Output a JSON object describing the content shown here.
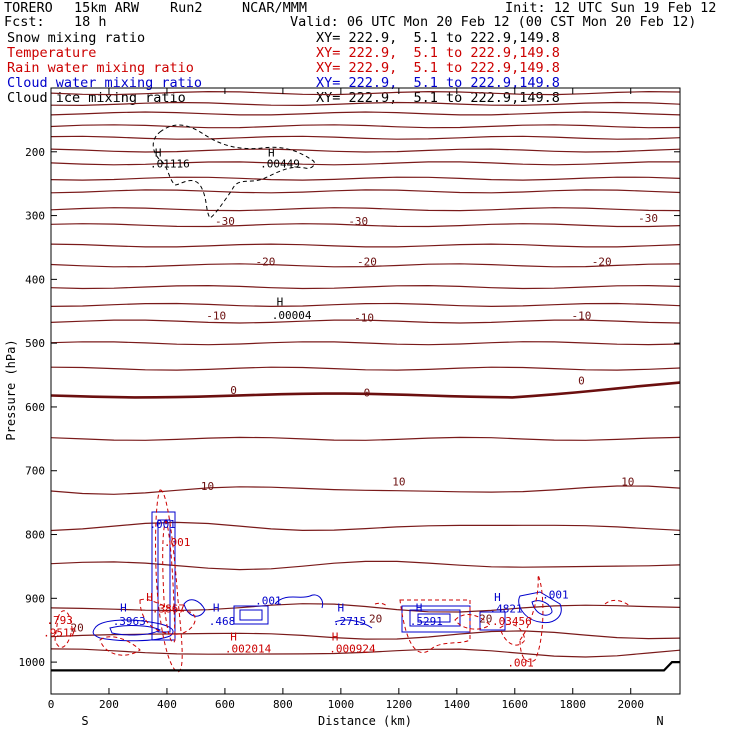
{
  "header": {
    "model": "TORERO",
    "resolution": "15km ARW",
    "run": "Run2",
    "org": "NCAR/MMM",
    "init": "Init: 12 UTC Sun 19 Feb 12",
    "fcst_label": "Fcst:",
    "fcst_value": "18 h",
    "valid": "Valid: 06 UTC Mon 20 Feb 12 (00 CST Mon 20 Feb 12)"
  },
  "legend": [
    {
      "name": "Snow mixing ratio",
      "xy": "XY= 222.9,  5.1 to 222.9,149.8",
      "color": "#000000"
    },
    {
      "name": "Temperature",
      "xy": "XY= 222.9,  5.1 to 222.9,149.8",
      "color": "#cc0000"
    },
    {
      "name": "Rain water mixing ratio",
      "xy": "XY= 222.9,  5.1 to 222.9,149.8",
      "color": "#cc0000"
    },
    {
      "name": "Cloud water mixing ratio",
      "xy": "XY= 222.9,  5.1 to 222.9,149.8",
      "color": "#0000cc"
    },
    {
      "name": "Cloud ice mixing ratio",
      "xy": "XY= 222.9,  5.1 to 222.9,149.8",
      "color": "#000000"
    }
  ],
  "chart_data": {
    "type": "cross-section contour",
    "xlabel": "Distance (km)",
    "ylabel": "Pressure (hPa)",
    "xlim": [
      0,
      2170
    ],
    "ylim": [
      1050,
      100
    ],
    "x_ticks": [
      "0",
      "200",
      "400",
      "600",
      "800",
      "1000",
      "1200",
      "1400",
      "1600",
      "1800",
      "2000"
    ],
    "y_ticks": [
      "200",
      "300",
      "400",
      "500",
      "600",
      "700",
      "800",
      "900",
      "1000"
    ],
    "end_labels": {
      "left": "S",
      "right": "N"
    },
    "temperature_labels": [
      {
        "text": "-30",
        "x": 600,
        "p": 315
      },
      {
        "text": "-30",
        "x": 1060,
        "p": 315
      },
      {
        "text": "-30",
        "x": 2060,
        "p": 310
      },
      {
        "text": "-20",
        "x": 740,
        "p": 378
      },
      {
        "text": "-20",
        "x": 1090,
        "p": 378
      },
      {
        "text": "-20",
        "x": 1900,
        "p": 378
      },
      {
        "text": "-10",
        "x": 570,
        "p": 463
      },
      {
        "text": "-10",
        "x": 1080,
        "p": 466
      },
      {
        "text": "-10",
        "x": 1830,
        "p": 463
      },
      {
        "text": "0",
        "x": 630,
        "p": 580
      },
      {
        "text": "0",
        "x": 1090,
        "p": 584
      },
      {
        "text": "0",
        "x": 1830,
        "p": 565
      },
      {
        "text": "10",
        "x": 540,
        "p": 730
      },
      {
        "text": "10",
        "x": 1200,
        "p": 723
      },
      {
        "text": "10",
        "x": 1990,
        "p": 723
      },
      {
        "text": "20",
        "x": 90,
        "p": 952
      },
      {
        "text": "20",
        "x": 1120,
        "p": 938
      },
      {
        "text": "20",
        "x": 1500,
        "p": 938
      }
    ],
    "maxima_labels": [
      {
        "text": ".01116",
        "x": 410,
        "p": 225,
        "color": "#000000"
      },
      {
        "text": ".00449",
        "x": 790,
        "p": 225,
        "color": "#000000"
      },
      {
        "text": ".00004",
        "x": 830,
        "p": 462,
        "color": "#000000"
      },
      {
        "text": ".001",
        "x": 385,
        "p": 790,
        "color": "#0000cc"
      },
      {
        "text": ".001",
        "x": 435,
        "p": 818,
        "color": "#cc0000"
      },
      {
        "text": ".001",
        "x": 750,
        "p": 910,
        "color": "#0000cc"
      },
      {
        "text": ".001",
        "x": 1740,
        "p": 900,
        "color": "#0000cc"
      },
      {
        "text": ".793",
        "x": 30,
        "p": 940,
        "color": "#cc0000"
      },
      {
        "text": ".9517",
        "x": 30,
        "p": 960,
        "color": "#cc0000"
      },
      {
        "text": ".3963",
        "x": 270,
        "p": 942,
        "color": "#0000cc"
      },
      {
        "text": ".3867",
        "x": 405,
        "p": 922,
        "color": "#cc0000"
      },
      {
        "text": ".468",
        "x": 590,
        "p": 942,
        "color": "#0000cc"
      },
      {
        "text": ".002014",
        "x": 680,
        "p": 985,
        "color": "#cc0000"
      },
      {
        "text": ".2715",
        "x": 1030,
        "p": 942,
        "color": "#0000cc"
      },
      {
        "text": ".000924",
        "x": 1040,
        "p": 985,
        "color": "#cc0000"
      },
      {
        "text": ".5291",
        "x": 1295,
        "p": 942,
        "color": "#0000cc"
      },
      {
        "text": ".4821",
        "x": 1570,
        "p": 922,
        "color": "#0000cc"
      },
      {
        "text": ".03456",
        "x": 1590,
        "p": 942,
        "color": "#cc0000"
      },
      {
        "text": ".001",
        "x": 1620,
        "p": 1007,
        "color": "#cc0000"
      }
    ],
    "maxima_markers": [
      {
        "x": 370,
        "p": 207,
        "color": "#000000"
      },
      {
        "x": 760,
        "p": 207,
        "color": "#000000"
      },
      {
        "x": 790,
        "p": 441,
        "color": "#000000"
      },
      {
        "x": 250,
        "p": 921,
        "color": "#0000cc"
      },
      {
        "x": 340,
        "p": 904,
        "color": "#cc0000"
      },
      {
        "x": 570,
        "p": 921,
        "color": "#0000cc"
      },
      {
        "x": 630,
        "p": 966,
        "color": "#cc0000"
      },
      {
        "x": 1000,
        "p": 921,
        "color": "#0000cc"
      },
      {
        "x": 980,
        "p": 966,
        "color": "#cc0000"
      },
      {
        "x": 1270,
        "p": 921,
        "color": "#0000cc"
      },
      {
        "x": 1540,
        "p": 904,
        "color": "#0000cc"
      }
    ]
  }
}
